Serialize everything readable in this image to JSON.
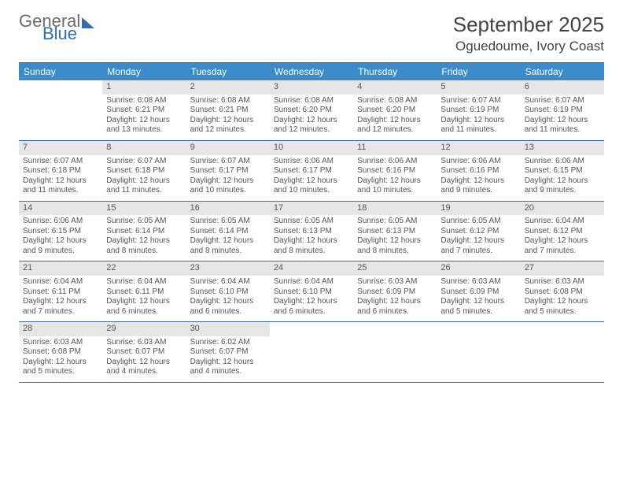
{
  "logo": {
    "general": "General",
    "blue": "Blue"
  },
  "header": {
    "month_title": "September 2025",
    "location": "Oguedoume, Ivory Coast"
  },
  "colors": {
    "header_bg": "#3b8bca",
    "border": "#2f6fae",
    "daynum_bg": "#e6e6e6",
    "text": "#555"
  },
  "dow": [
    "Sunday",
    "Monday",
    "Tuesday",
    "Wednesday",
    "Thursday",
    "Friday",
    "Saturday"
  ],
  "weeks": [
    [
      {
        "n": "",
        "sr": "",
        "ss": "",
        "dl": ""
      },
      {
        "n": "1",
        "sr": "Sunrise: 6:08 AM",
        "ss": "Sunset: 6:21 PM",
        "dl": "Daylight: 12 hours and 13 minutes."
      },
      {
        "n": "2",
        "sr": "Sunrise: 6:08 AM",
        "ss": "Sunset: 6:21 PM",
        "dl": "Daylight: 12 hours and 12 minutes."
      },
      {
        "n": "3",
        "sr": "Sunrise: 6:08 AM",
        "ss": "Sunset: 6:20 PM",
        "dl": "Daylight: 12 hours and 12 minutes."
      },
      {
        "n": "4",
        "sr": "Sunrise: 6:08 AM",
        "ss": "Sunset: 6:20 PM",
        "dl": "Daylight: 12 hours and 12 minutes."
      },
      {
        "n": "5",
        "sr": "Sunrise: 6:07 AM",
        "ss": "Sunset: 6:19 PM",
        "dl": "Daylight: 12 hours and 11 minutes."
      },
      {
        "n": "6",
        "sr": "Sunrise: 6:07 AM",
        "ss": "Sunset: 6:19 PM",
        "dl": "Daylight: 12 hours and 11 minutes."
      }
    ],
    [
      {
        "n": "7",
        "sr": "Sunrise: 6:07 AM",
        "ss": "Sunset: 6:18 PM",
        "dl": "Daylight: 12 hours and 11 minutes."
      },
      {
        "n": "8",
        "sr": "Sunrise: 6:07 AM",
        "ss": "Sunset: 6:18 PM",
        "dl": "Daylight: 12 hours and 11 minutes."
      },
      {
        "n": "9",
        "sr": "Sunrise: 6:07 AM",
        "ss": "Sunset: 6:17 PM",
        "dl": "Daylight: 12 hours and 10 minutes."
      },
      {
        "n": "10",
        "sr": "Sunrise: 6:06 AM",
        "ss": "Sunset: 6:17 PM",
        "dl": "Daylight: 12 hours and 10 minutes."
      },
      {
        "n": "11",
        "sr": "Sunrise: 6:06 AM",
        "ss": "Sunset: 6:16 PM",
        "dl": "Daylight: 12 hours and 10 minutes."
      },
      {
        "n": "12",
        "sr": "Sunrise: 6:06 AM",
        "ss": "Sunset: 6:16 PM",
        "dl": "Daylight: 12 hours and 9 minutes."
      },
      {
        "n": "13",
        "sr": "Sunrise: 6:06 AM",
        "ss": "Sunset: 6:15 PM",
        "dl": "Daylight: 12 hours and 9 minutes."
      }
    ],
    [
      {
        "n": "14",
        "sr": "Sunrise: 6:06 AM",
        "ss": "Sunset: 6:15 PM",
        "dl": "Daylight: 12 hours and 9 minutes."
      },
      {
        "n": "15",
        "sr": "Sunrise: 6:05 AM",
        "ss": "Sunset: 6:14 PM",
        "dl": "Daylight: 12 hours and 8 minutes."
      },
      {
        "n": "16",
        "sr": "Sunrise: 6:05 AM",
        "ss": "Sunset: 6:14 PM",
        "dl": "Daylight: 12 hours and 8 minutes."
      },
      {
        "n": "17",
        "sr": "Sunrise: 6:05 AM",
        "ss": "Sunset: 6:13 PM",
        "dl": "Daylight: 12 hours and 8 minutes."
      },
      {
        "n": "18",
        "sr": "Sunrise: 6:05 AM",
        "ss": "Sunset: 6:13 PM",
        "dl": "Daylight: 12 hours and 8 minutes."
      },
      {
        "n": "19",
        "sr": "Sunrise: 6:05 AM",
        "ss": "Sunset: 6:12 PM",
        "dl": "Daylight: 12 hours and 7 minutes."
      },
      {
        "n": "20",
        "sr": "Sunrise: 6:04 AM",
        "ss": "Sunset: 6:12 PM",
        "dl": "Daylight: 12 hours and 7 minutes."
      }
    ],
    [
      {
        "n": "21",
        "sr": "Sunrise: 6:04 AM",
        "ss": "Sunset: 6:11 PM",
        "dl": "Daylight: 12 hours and 7 minutes."
      },
      {
        "n": "22",
        "sr": "Sunrise: 6:04 AM",
        "ss": "Sunset: 6:11 PM",
        "dl": "Daylight: 12 hours and 6 minutes."
      },
      {
        "n": "23",
        "sr": "Sunrise: 6:04 AM",
        "ss": "Sunset: 6:10 PM",
        "dl": "Daylight: 12 hours and 6 minutes."
      },
      {
        "n": "24",
        "sr": "Sunrise: 6:04 AM",
        "ss": "Sunset: 6:10 PM",
        "dl": "Daylight: 12 hours and 6 minutes."
      },
      {
        "n": "25",
        "sr": "Sunrise: 6:03 AM",
        "ss": "Sunset: 6:09 PM",
        "dl": "Daylight: 12 hours and 6 minutes."
      },
      {
        "n": "26",
        "sr": "Sunrise: 6:03 AM",
        "ss": "Sunset: 6:09 PM",
        "dl": "Daylight: 12 hours and 5 minutes."
      },
      {
        "n": "27",
        "sr": "Sunrise: 6:03 AM",
        "ss": "Sunset: 6:08 PM",
        "dl": "Daylight: 12 hours and 5 minutes."
      }
    ],
    [
      {
        "n": "28",
        "sr": "Sunrise: 6:03 AM",
        "ss": "Sunset: 6:08 PM",
        "dl": "Daylight: 12 hours and 5 minutes."
      },
      {
        "n": "29",
        "sr": "Sunrise: 6:03 AM",
        "ss": "Sunset: 6:07 PM",
        "dl": "Daylight: 12 hours and 4 minutes."
      },
      {
        "n": "30",
        "sr": "Sunrise: 6:02 AM",
        "ss": "Sunset: 6:07 PM",
        "dl": "Daylight: 12 hours and 4 minutes."
      },
      {
        "n": "",
        "sr": "",
        "ss": "",
        "dl": ""
      },
      {
        "n": "",
        "sr": "",
        "ss": "",
        "dl": ""
      },
      {
        "n": "",
        "sr": "",
        "ss": "",
        "dl": ""
      },
      {
        "n": "",
        "sr": "",
        "ss": "",
        "dl": ""
      }
    ]
  ]
}
